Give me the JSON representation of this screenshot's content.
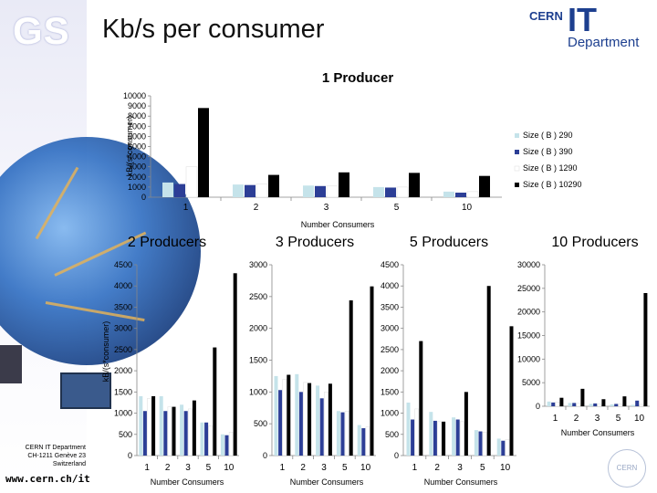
{
  "slide": {
    "title": "Kb/s per consumer",
    "logo_text": "GS",
    "brand": {
      "cern": "CERN",
      "it": "IT",
      "department": "Department"
    },
    "footer": {
      "line1": "CERN IT Department",
      "line2": "CH-1211 Genève 23",
      "line3": "Switzerland",
      "url": "www.cern.ch/it"
    },
    "cern_logo_text": "CERN"
  },
  "colors": {
    "size290": "#c5e3ea",
    "size390": "#2c3e96",
    "size1290": "#ffffff",
    "size10290": "#000000",
    "brand": "#1d3f8f"
  },
  "chart_data": [
    {
      "type": "bar",
      "title": "1 Producer",
      "xlabel": "Number Consumers",
      "ylabel": "kB/(s*consumer)",
      "ylim": [
        0,
        10000
      ],
      "yticks": [
        0,
        1000,
        2000,
        3000,
        4000,
        5000,
        6000,
        7000,
        8000,
        9000,
        10000
      ],
      "categories": [
        "1",
        "2",
        "3",
        "5",
        "10"
      ],
      "legend_position": "right",
      "series": [
        {
          "name": "Size ( B ) 290",
          "values": [
            1450,
            1250,
            1150,
            1000,
            550
          ]
        },
        {
          "name": "Size ( B ) 390",
          "values": [
            1300,
            1200,
            1100,
            950,
            450
          ]
        },
        {
          "name": "Size ( B ) 1290",
          "values": [
            3000,
            1300,
            1100,
            1000,
            550
          ]
        },
        {
          "name": "Size ( B ) 10290",
          "values": [
            8800,
            2200,
            2450,
            2400,
            2100
          ]
        }
      ]
    },
    {
      "type": "bar",
      "title": "2 Producers",
      "xlabel": "Number Consumers",
      "ylabel": "kB/(s*consumer)",
      "ylim": [
        0,
        4500
      ],
      "yticks": [
        0,
        500,
        1000,
        1500,
        2000,
        2500,
        3000,
        3500,
        4000,
        4500
      ],
      "categories": [
        "1",
        "2",
        "3",
        "5",
        "10"
      ],
      "series": [
        {
          "name": "Size ( B ) 290",
          "values": [
            1400,
            1400,
            1200,
            780,
            500
          ]
        },
        {
          "name": "Size ( B ) 390",
          "values": [
            1050,
            1050,
            1050,
            780,
            480
          ]
        },
        {
          "name": "Size ( B ) 1290",
          "values": [
            1350,
            1150,
            1100,
            700,
            550
          ]
        },
        {
          "name": "Size ( B ) 10290",
          "values": [
            1400,
            1150,
            1300,
            2550,
            4300
          ]
        }
      ]
    },
    {
      "type": "bar",
      "title": "3 Producers",
      "xlabel": "Number Consumers",
      "ylabel": "",
      "ylim": [
        0,
        3000
      ],
      "yticks": [
        0,
        500,
        1000,
        1500,
        2000,
        2500,
        3000
      ],
      "categories": [
        "1",
        "2",
        "3",
        "5",
        "10"
      ],
      "series": [
        {
          "name": "Size ( B ) 290",
          "values": [
            1250,
            1280,
            1100,
            700,
            480
          ]
        },
        {
          "name": "Size ( B ) 390",
          "values": [
            1030,
            1000,
            900,
            680,
            430
          ]
        },
        {
          "name": "Size ( B ) 1290",
          "values": [
            1200,
            1150,
            1000,
            700,
            450
          ]
        },
        {
          "name": "Size ( B ) 10290",
          "values": [
            1270,
            1140,
            1130,
            2440,
            2660
          ]
        }
      ]
    },
    {
      "type": "bar",
      "title": "5 Producers",
      "xlabel": "Number Consumers",
      "ylabel": "",
      "ylim": [
        0,
        4500
      ],
      "yticks": [
        0,
        500,
        1000,
        1500,
        2000,
        2500,
        3000,
        3500,
        4000,
        4500
      ],
      "categories": [
        "1",
        "2",
        "3",
        "5",
        "10"
      ],
      "series": [
        {
          "name": "Size ( B ) 290",
          "values": [
            1250,
            1030,
            900,
            600,
            400
          ]
        },
        {
          "name": "Size ( B ) 390",
          "values": [
            850,
            820,
            850,
            570,
            350
          ]
        },
        {
          "name": "Size ( B ) 1290",
          "values": [
            1100,
            800,
            800,
            550,
            380
          ]
        },
        {
          "name": "Size ( B ) 10290",
          "values": [
            2700,
            800,
            1500,
            4000,
            3050
          ]
        }
      ]
    },
    {
      "type": "bar",
      "title": "10 Producers",
      "xlabel": "Number Consumers",
      "ylabel": "",
      "ylim": [
        0,
        30000
      ],
      "yticks": [
        0,
        5000,
        10000,
        15000,
        20000,
        25000,
        30000
      ],
      "categories": [
        "1",
        "2",
        "3",
        "5",
        "10"
      ],
      "series": [
        {
          "name": "Size ( B ) 290",
          "values": [
            1000,
            700,
            500,
            400,
            300
          ]
        },
        {
          "name": "Size ( B ) 390",
          "values": [
            800,
            700,
            600,
            500,
            1200
          ]
        },
        {
          "name": "Size ( B ) 1290",
          "values": [
            900,
            600,
            500,
            500,
            400
          ]
        },
        {
          "name": "Size ( B ) 10290",
          "values": [
            1800,
            3700,
            1500,
            2100,
            24000
          ]
        }
      ]
    }
  ]
}
